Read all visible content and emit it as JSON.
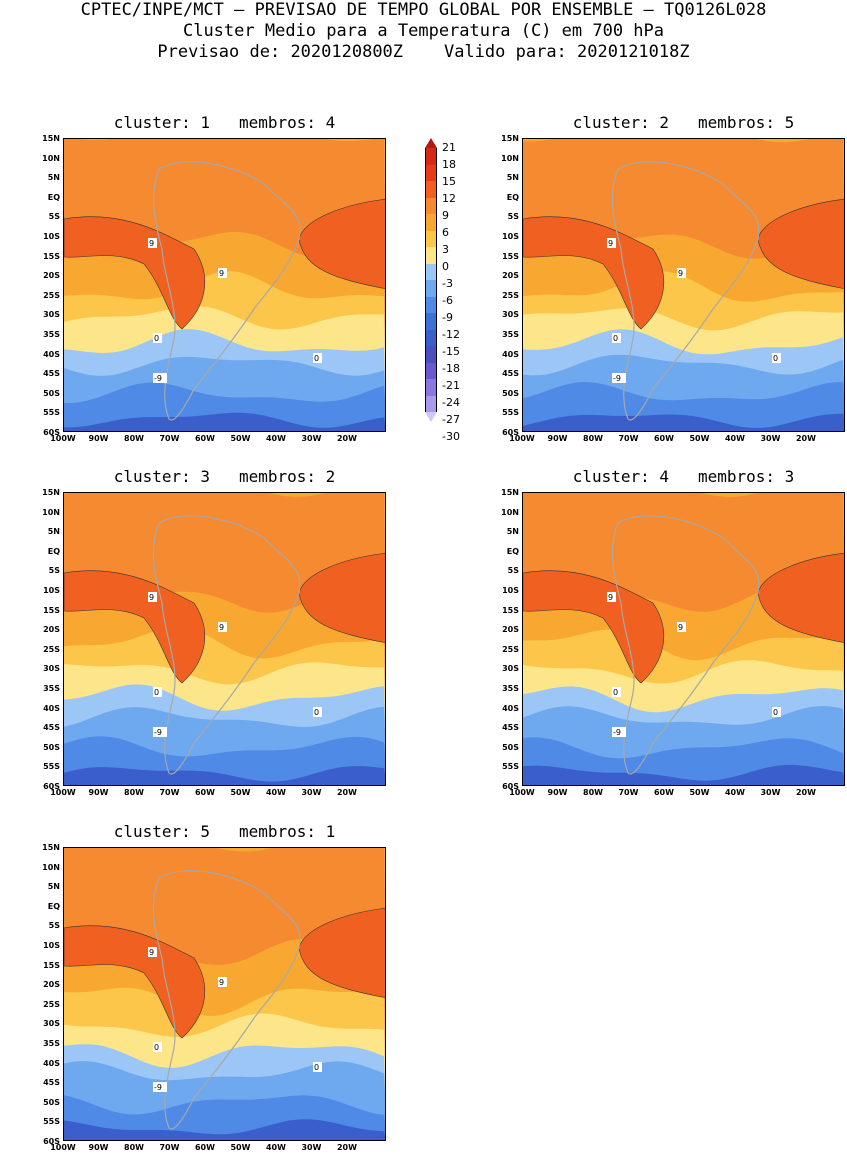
{
  "header": {
    "line1": "CPTEC/INPE/MCT – PREVISAO DE TEMPO GLOBAL POR ENSEMBLE – TQ0126L028",
    "line2": "Cluster Medio para a Temperatura (C) em 700 hPa",
    "line3": "Previsao de: 2020120800Z    Valido para: 2020121018Z"
  },
  "panels": [
    {
      "title": "cluster: 1   membros: 4"
    },
    {
      "title": "cluster: 2   membros: 5"
    },
    {
      "title": "cluster: 3   membros: 2"
    },
    {
      "title": "cluster: 4   membros: 3"
    },
    {
      "title": "cluster: 5   membros: 1"
    }
  ],
  "lat_labels": [
    "15N",
    "10N",
    "5N",
    "EQ",
    "5S",
    "10S",
    "15S",
    "20S",
    "25S",
    "30S",
    "35S",
    "40S",
    "45S",
    "50S",
    "55S",
    "60S"
  ],
  "lon_labels": [
    "100W",
    "90W",
    "80W",
    "70W",
    "60W",
    "50W",
    "40W",
    "30W",
    "20W"
  ],
  "colorbar": {
    "levels": [
      "21",
      "18",
      "15",
      "12",
      "9",
      "6",
      "3",
      "0",
      "-3",
      "-6",
      "-9",
      "-12",
      "-15",
      "-18",
      "-21",
      "-24",
      "-27",
      "-30"
    ],
    "colors": [
      "#b01a10",
      "#d42a15",
      "#e83c18",
      "#f06020",
      "#f58a30",
      "#f8a830",
      "#fbc64a",
      "#fde68a",
      "#9cc6f5",
      "#6ea8ef",
      "#4e8ae6",
      "#3a72d8",
      "#3a5ecb",
      "#4a4fc0",
      "#6a5ad0",
      "#8a78e0",
      "#aa9aea",
      "#d2c8f4"
    ]
  },
  "contour_labels": {
    "warm": "9",
    "zero": "0",
    "cold": "-9"
  }
}
